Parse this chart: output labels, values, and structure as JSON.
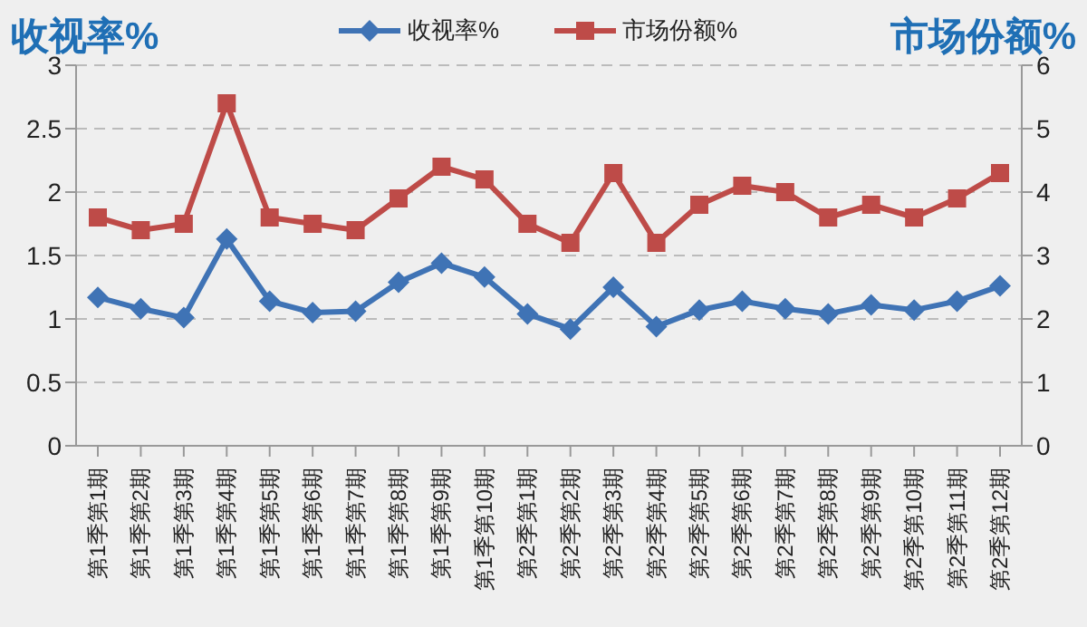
{
  "chart_data": {
    "type": "line",
    "ylabel": "收视率%",
    "y2label": "市场份额%",
    "categories": [
      "第1季第1期",
      "第1季第2期",
      "第1季第3期",
      "第1季第4期",
      "第1季第5期",
      "第1季第6期",
      "第1季第7期",
      "第1季第8期",
      "第1季第9期",
      "第1季第10期",
      "第2季第1期",
      "第2季第2期",
      "第2季第3期",
      "第2季第4期",
      "第2季第5期",
      "第2季第6期",
      "第2季第7期",
      "第2季第8期",
      "第2季第9期",
      "第2季第10期",
      "第2季第11期",
      "第2季第12期"
    ],
    "series": [
      {
        "name": "收视率%",
        "color": "#3f73b5",
        "marker": "diamond",
        "values": [
          1.17,
          1.08,
          1.01,
          1.63,
          1.14,
          1.05,
          1.06,
          1.29,
          1.44,
          1.33,
          1.04,
          0.92,
          1.25,
          0.94,
          1.07,
          1.14,
          1.08,
          1.04,
          1.11,
          1.07,
          1.14,
          1.26
        ]
      },
      {
        "name": "市场份额%",
        "color": "#be4b48",
        "marker": "square",
        "axis": "y2",
        "values": [
          3.6,
          3.4,
          3.5,
          5.4,
          3.6,
          3.5,
          3.4,
          3.9,
          4.4,
          4.2,
          3.5,
          3.2,
          4.3,
          3.2,
          3.8,
          4.1,
          4.0,
          3.6,
          3.8,
          3.6,
          3.9,
          4.3
        ]
      }
    ],
    "ylim": [
      0,
      3
    ],
    "yticks": [
      0,
      0.5,
      1,
      1.5,
      2,
      2.5,
      3
    ],
    "y2lim": [
      0,
      6
    ],
    "y2ticks": [
      0,
      1,
      2,
      3,
      4,
      5,
      6
    ],
    "grid": "y",
    "legend": "top",
    "line_style": "solid"
  }
}
